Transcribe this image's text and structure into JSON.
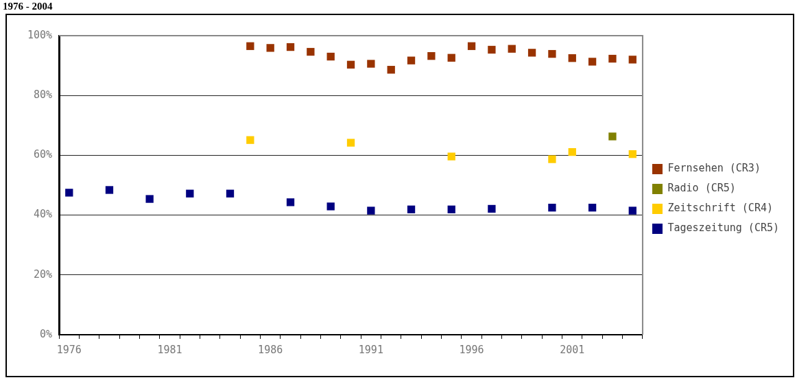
{
  "chart_data": {
    "type": "scatter",
    "title": "1976 - 2004",
    "categories": [
      "1976",
      null,
      null,
      null,
      null,
      "1981",
      null,
      null,
      null,
      null,
      "1986",
      null,
      null,
      null,
      null,
      "1991",
      null,
      null,
      null,
      null,
      "1996",
      null,
      null,
      null,
      null,
      "2001",
      null,
      null,
      null
    ],
    "series": [
      {
        "name": "Fernsehen (CR3)",
        "color": "#993300",
        "values": [
          null,
          null,
          null,
          null,
          null,
          null,
          null,
          null,
          null,
          96.5,
          95.9,
          96.2,
          94.6,
          93.0,
          90.3,
          90.6,
          88.6,
          91.7,
          93.2,
          92.6,
          96.5,
          95.3,
          95.6,
          94.3,
          93.9,
          92.5,
          91.3,
          92.3,
          92.0
        ]
      },
      {
        "name": "Radio (CR5)",
        "color": "#808000",
        "values": [
          null,
          null,
          null,
          null,
          null,
          null,
          null,
          null,
          null,
          null,
          null,
          null,
          null,
          null,
          null,
          null,
          null,
          null,
          null,
          null,
          null,
          null,
          null,
          null,
          null,
          null,
          null,
          66.3,
          null
        ]
      },
      {
        "name": "Zeitschrift (CR4)",
        "color": "#ffcc00",
        "values": [
          null,
          null,
          null,
          null,
          null,
          null,
          null,
          null,
          null,
          65.1,
          null,
          null,
          null,
          null,
          64.2,
          null,
          null,
          null,
          null,
          59.6,
          null,
          null,
          null,
          null,
          58.7,
          61.1,
          null,
          null,
          60.4
        ]
      },
      {
        "name": "Tageszeitung (CR5)",
        "color": "#000080",
        "values": [
          47.5,
          null,
          48.4,
          null,
          45.4,
          null,
          47.2,
          null,
          47.2,
          null,
          null,
          44.3,
          null,
          42.9,
          null,
          41.5,
          null,
          41.9,
          null,
          41.9,
          null,
          42.1,
          null,
          null,
          42.5,
          null,
          42.5,
          null,
          41.5
        ]
      }
    ],
    "ylim": [
      0,
      100
    ],
    "yticks": [
      {
        "value": 0,
        "label": "0%"
      },
      {
        "value": 20,
        "label": "20%"
      },
      {
        "value": 40,
        "label": "40%"
      },
      {
        "value": 60,
        "label": "60%"
      },
      {
        "value": 80,
        "label": "80%"
      },
      {
        "value": 100,
        "label": "100%"
      }
    ],
    "grid": "y",
    "legend": "right",
    "marker": "square"
  }
}
